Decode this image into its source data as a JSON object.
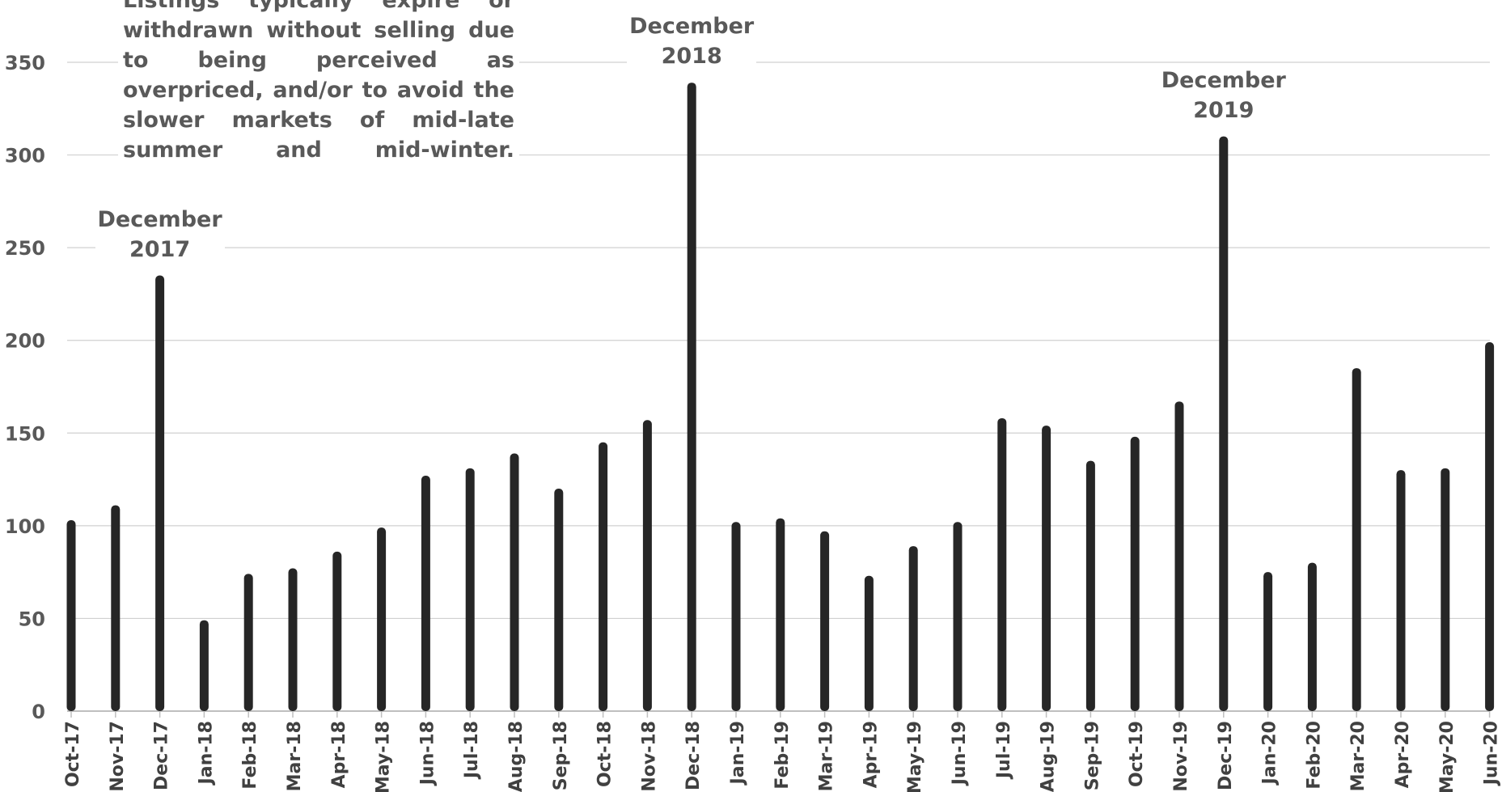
{
  "chart_data": {
    "type": "bar",
    "categories": [
      "Oct-17",
      "Nov-17",
      "Dec-17",
      "Jan-18",
      "Feb-18",
      "Mar-18",
      "Apr-18",
      "May-18",
      "Jun-18",
      "Jul-18",
      "Aug-18",
      "Sep-18",
      "Oct-18",
      "Nov-18",
      "Dec-18",
      "Jan-19",
      "Feb-19",
      "Mar-19",
      "Apr-19",
      "May-19",
      "Jun-19",
      "Jul-19",
      "Aug-19",
      "Sep-19",
      "Oct-19",
      "Nov-19",
      "Dec-19",
      "Jan-20",
      "Feb-20",
      "Mar-20",
      "Apr-20",
      "May-20",
      "Jun-20"
    ],
    "values": [
      103,
      111,
      235,
      49,
      74,
      77,
      86,
      99,
      127,
      131,
      139,
      120,
      145,
      157,
      339,
      102,
      104,
      97,
      73,
      89,
      102,
      158,
      154,
      135,
      148,
      167,
      310,
      75,
      80,
      185,
      130,
      131,
      199
    ],
    "ylim": [
      0,
      350
    ],
    "yticks": [
      0,
      50,
      100,
      150,
      200,
      250,
      300,
      350
    ],
    "grid": true,
    "bar_color": "#262626",
    "annotations": [
      {
        "category": "Dec-17",
        "line1": "December",
        "line2": "2017"
      },
      {
        "category": "Dec-18",
        "line1": "December",
        "line2": "2018"
      },
      {
        "category": "Dec-19",
        "line1": "December",
        "line2": "2019"
      }
    ],
    "note": "Listings typically expire or withdrawn without selling due to being perceived as overpriced, and/or to avoid the slower markets of mid-late summer and mid-winter."
  }
}
